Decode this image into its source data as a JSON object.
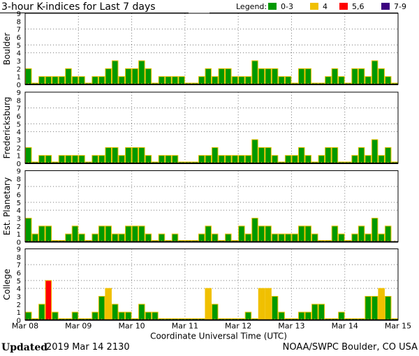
{
  "chart_data": {
    "type": "bar",
    "title": "3-hour K-indices for Last 7 days",
    "legend": {
      "label": "Legend:",
      "placement": "top-right",
      "entries": [
        {
          "label": "0-3",
          "color": "#009900"
        },
        {
          "label": "4",
          "color": "#f0c000"
        },
        {
          "label": "5,6",
          "color": "#ff0000"
        },
        {
          "label": "7-9",
          "color": "#3c0080"
        }
      ]
    },
    "bar_outline_color": "#f0c000",
    "xlabel": "Coordinate Universal Time (UTC)",
    "x_tick_labels": [
      "Mar 08",
      "Mar 09",
      "Mar 10",
      "Mar 11",
      "Mar 12",
      "Mar 13",
      "Mar 14",
      "Mar 15"
    ],
    "y_tick_labels": [
      "0",
      "1",
      "2",
      "3",
      "4",
      "5",
      "6",
      "7",
      "8",
      "9"
    ],
    "ylim": [
      0,
      9
    ],
    "grid": {
      "horizontal_at": [
        4,
        5,
        7
      ],
      "vertical": "daily",
      "style": "dotted"
    },
    "bars_per_day": 8,
    "panels": [
      {
        "name": "Boulder",
        "values": [
          2,
          0,
          1,
          1,
          1,
          1,
          2,
          1,
          1,
          0,
          1,
          1,
          2,
          3,
          1,
          2,
          2,
          3,
          2,
          0,
          1,
          1,
          1,
          1,
          0,
          0,
          1,
          2,
          1,
          2,
          2,
          1,
          1,
          1,
          3,
          2,
          2,
          2,
          1,
          1,
          0,
          2,
          2,
          0,
          0,
          1,
          2,
          1,
          0,
          2,
          2,
          1,
          3,
          2,
          1,
          0
        ]
      },
      {
        "name": "Fredericksburg",
        "values": [
          2,
          0,
          1,
          1,
          0,
          1,
          1,
          1,
          1,
          0,
          1,
          1,
          2,
          2,
          1,
          2,
          2,
          2,
          1,
          0,
          1,
          1,
          1,
          0,
          0,
          0,
          1,
          1,
          2,
          1,
          1,
          1,
          1,
          1,
          3,
          2,
          2,
          1,
          0,
          1,
          1,
          2,
          1,
          0,
          1,
          2,
          2,
          0,
          0,
          1,
          2,
          1,
          3,
          1,
          2,
          0
        ]
      },
      {
        "name": "Est. Planetary",
        "values": [
          3,
          1,
          2,
          2,
          0,
          0,
          1,
          2,
          1,
          0,
          1,
          2,
          2,
          1,
          1,
          2,
          2,
          2,
          1,
          0,
          1,
          0,
          1,
          0,
          0,
          0,
          1,
          2,
          1,
          0,
          1,
          0,
          2,
          1,
          3,
          2,
          2,
          1,
          1,
          1,
          1,
          2,
          2,
          1,
          0,
          0,
          2,
          1,
          0,
          1,
          2,
          1,
          3,
          1,
          2,
          null
        ]
      },
      {
        "name": "College",
        "values": [
          1,
          0,
          2,
          5,
          1,
          0,
          0,
          1,
          0,
          0,
          1,
          3,
          4,
          2,
          1,
          1,
          0,
          2,
          1,
          1,
          0,
          0,
          0,
          0,
          0,
          0,
          0,
          4,
          2,
          0,
          0,
          0,
          0,
          1,
          0,
          4,
          4,
          3,
          1,
          0,
          0,
          1,
          1,
          2,
          2,
          0,
          0,
          1,
          0,
          0,
          0,
          3,
          3,
          4,
          3,
          0
        ]
      }
    ]
  },
  "footer": {
    "updated_label": "Updated",
    "updated_value": "2019 Mar 14 2130",
    "credit": "NOAA/SWPC Boulder, CO USA"
  }
}
